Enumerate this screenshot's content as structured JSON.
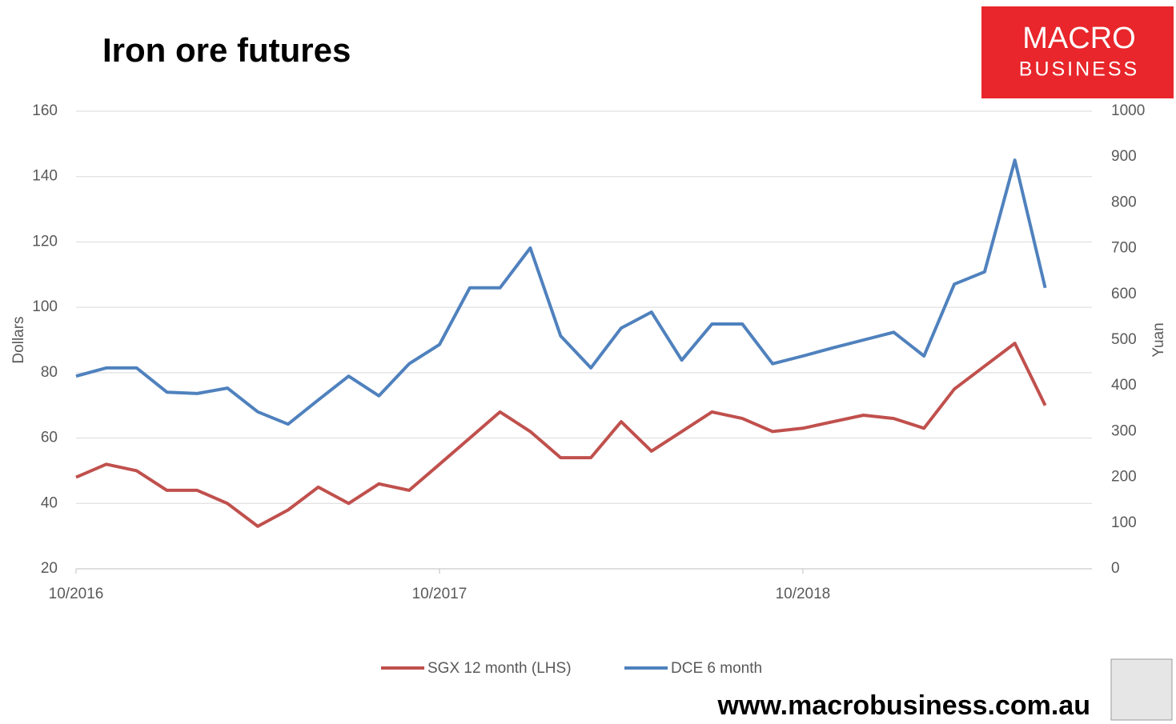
{
  "chart_data": {
    "type": "line",
    "title": "Iron ore futures",
    "logo": [
      "MACRO",
      "BUSINESS"
    ],
    "website": "www.macrobusiness.com.au",
    "ylabel": "Dollars",
    "y2label": "Yuan",
    "x": [
      "10/2016",
      "11/2016",
      "12/2016",
      "01/2017",
      "02/2017",
      "03/2017",
      "04/2017",
      "05/2017",
      "06/2017",
      "07/2017",
      "08/2017",
      "09/2017",
      "10/2017",
      "11/2017",
      "12/2017",
      "01/2018",
      "02/2018",
      "03/2018",
      "04/2018",
      "05/2018",
      "06/2018",
      "07/2018",
      "08/2018",
      "09/2018",
      "10/2018",
      "11/2018",
      "12/2018",
      "01/2019",
      "02/2019",
      "03/2019",
      "04/2019",
      "05/2019",
      "06/2019"
    ],
    "xticks": [
      "10/2016",
      "10/2017",
      "10/2018"
    ],
    "series": [
      {
        "name": "SGX 12 month (LHS)",
        "color": "#c0504d",
        "axis": "y",
        "values": [
          48,
          52,
          50,
          44,
          44,
          40,
          33,
          38,
          45,
          40,
          46,
          44,
          52,
          60,
          68,
          62,
          54,
          54,
          65,
          56,
          62,
          68,
          66,
          62,
          63,
          65,
          67,
          66,
          63,
          75,
          82,
          89,
          70
        ]
      },
      {
        "name": "DCE 6 month",
        "color": "#4f81bd",
        "axis": "y2",
        "values": [
          421,
          439,
          439,
          386,
          383,
          395,
          343,
          316,
          369,
          421,
          378,
          448,
          490,
          614,
          614,
          701,
          509,
          439,
          526,
          561,
          456,
          535,
          535,
          448,
          465,
          483,
          500,
          517,
          465,
          622,
          649,
          893,
          614
        ]
      }
    ],
    "ylim": [
      20,
      160
    ],
    "yticks": [
      20,
      40,
      60,
      80,
      100,
      120,
      140,
      160
    ],
    "y2lim": [
      0,
      1000
    ],
    "y2ticks": [
      0,
      100,
      200,
      300,
      400,
      500,
      600,
      700,
      800,
      900,
      1000
    ],
    "grid": true,
    "legend": "bottom"
  }
}
